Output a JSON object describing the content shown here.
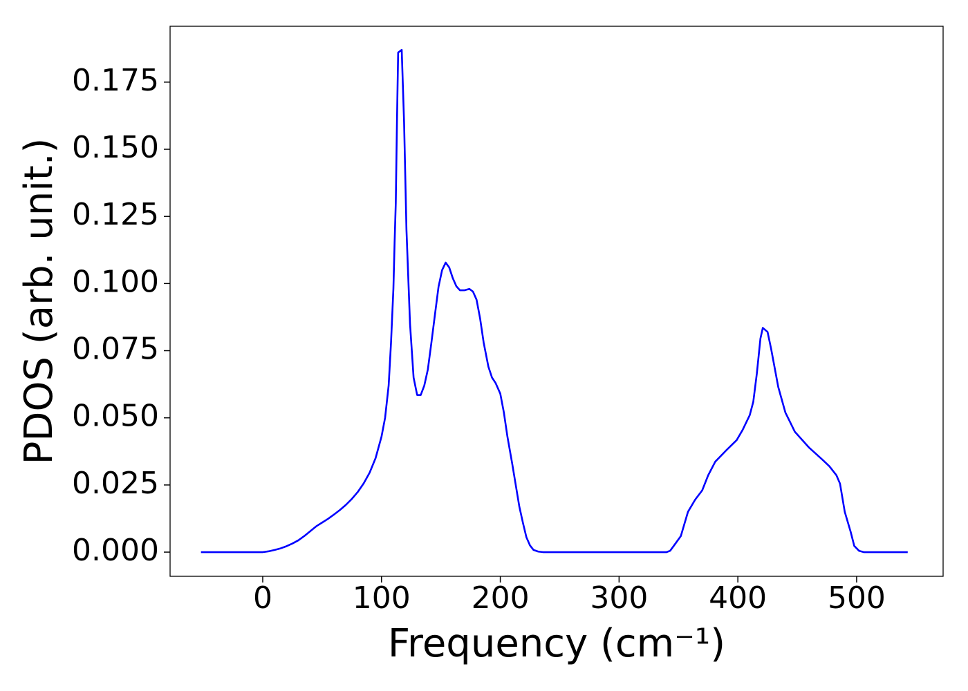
{
  "chart_data": {
    "type": "line",
    "xlabel": "Frequency (cm⁻¹)",
    "ylabel": "PDOS (arb. unit.)",
    "color": "#0000ff",
    "x": [
      -52,
      -40,
      -30,
      -20,
      -10,
      0,
      5,
      10,
      15,
      20,
      25,
      30,
      35,
      40,
      45,
      50,
      55,
      60,
      65,
      70,
      75,
      80,
      85,
      90,
      95,
      100,
      103,
      106,
      108,
      110,
      111,
      112,
      113,
      114,
      117,
      119,
      121,
      124,
      127,
      130,
      133,
      136,
      139,
      142,
      145,
      148,
      151,
      154,
      157,
      160,
      163,
      166,
      170,
      174,
      177,
      180,
      183,
      186,
      190,
      193,
      196,
      200,
      203,
      206,
      210,
      213,
      216,
      219,
      222,
      225,
      228,
      232,
      236,
      300,
      340,
      343,
      346,
      352,
      358,
      364,
      370,
      375,
      381,
      390,
      399,
      404,
      410,
      413,
      416,
      419,
      421,
      425,
      428,
      434,
      440,
      448,
      460,
      471,
      477,
      483,
      486,
      490,
      495,
      498,
      502,
      506,
      520,
      543
    ],
    "values": [
      0,
      0,
      0,
      0,
      0,
      0,
      0.0003,
      0.0008,
      0.0014,
      0.0022,
      0.0032,
      0.0044,
      0.006,
      0.0078,
      0.0096,
      0.011,
      0.0124,
      0.014,
      0.0157,
      0.0176,
      0.0198,
      0.0224,
      0.0256,
      0.0296,
      0.035,
      0.043,
      0.05,
      0.062,
      0.078,
      0.098,
      0.115,
      0.13,
      0.16,
      0.186,
      0.187,
      0.16,
      0.12,
      0.085,
      0.065,
      0.0585,
      0.0585,
      0.062,
      0.068,
      0.078,
      0.0885,
      0.0988,
      0.105,
      0.1078,
      0.106,
      0.102,
      0.099,
      0.0975,
      0.0975,
      0.098,
      0.097,
      0.094,
      0.087,
      0.078,
      0.069,
      0.065,
      0.063,
      0.059,
      0.052,
      0.043,
      0.033,
      0.025,
      0.017,
      0.011,
      0.0055,
      0.0025,
      0.0008,
      0.0002,
      0,
      0,
      0,
      0.0005,
      0.0023,
      0.006,
      0.015,
      0.0195,
      0.023,
      0.0286,
      0.0337,
      0.0378,
      0.0417,
      0.0455,
      0.051,
      0.056,
      0.0666,
      0.0795,
      0.0835,
      0.082,
      0.0757,
      0.0615,
      0.052,
      0.0448,
      0.0389,
      0.0345,
      0.032,
      0.0286,
      0.0255,
      0.015,
      0.0075,
      0.0023,
      0.0005,
      0,
      0,
      0
    ],
    "xlim": [
      -78,
      572.8
    ],
    "ylim": [
      -0.009,
      0.1958
    ],
    "xticks": [
      0,
      100,
      200,
      300,
      400,
      500
    ],
    "yticks": [
      {
        "value": 0,
        "label": "0.000"
      },
      0.025,
      {
        "value": 0.05,
        "label": "0.050"
      },
      0.075,
      {
        "value": 0.1,
        "label": "0.100"
      },
      0.125,
      {
        "value": 0.15,
        "label": "0.150"
      },
      0.175
    ]
  }
}
